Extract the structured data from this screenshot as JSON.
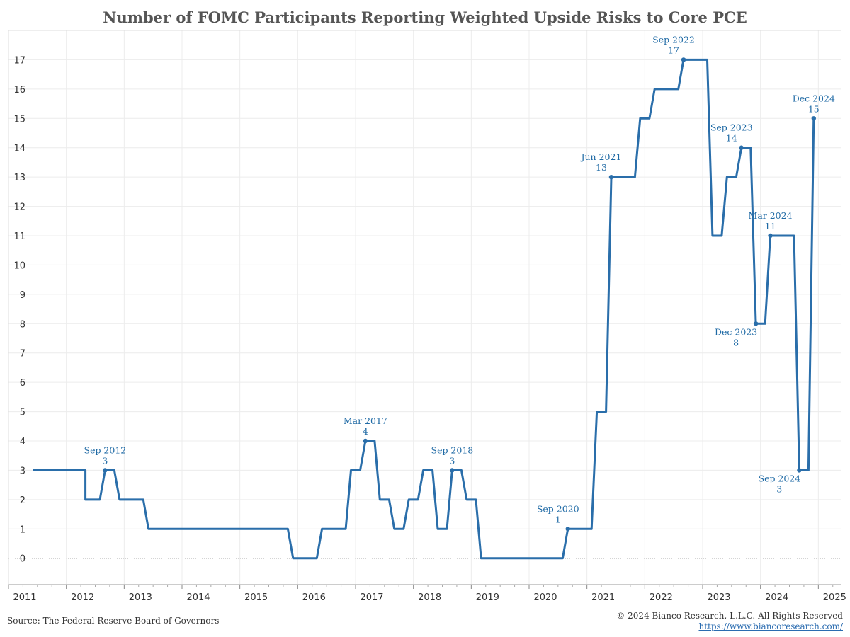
{
  "chart_data": {
    "type": "line",
    "title": "Number of FOMC Participants Reporting Weighted Upside Risks to Core PCE",
    "xlabel": "",
    "ylabel": "",
    "xlim": [
      2011.0,
      2025.4
    ],
    "ylim": [
      -0.9,
      18.0
    ],
    "x_ticks": [
      "2011",
      "2012",
      "2013",
      "2014",
      "2015",
      "2016",
      "2017",
      "2018",
      "2019",
      "2020",
      "2021",
      "2022",
      "2023",
      "2024",
      "2025"
    ],
    "y_ticks": [
      0,
      1,
      2,
      3,
      4,
      5,
      6,
      7,
      8,
      9,
      10,
      11,
      12,
      13,
      14,
      15,
      16,
      17
    ],
    "grid": true,
    "line_color": "#2a6eaa",
    "series": [
      {
        "name": "",
        "points": [
          [
            2011.42,
            3
          ],
          [
            2012.33,
            3
          ],
          [
            2012.33,
            2
          ],
          [
            2012.58,
            2
          ],
          [
            2012.67,
            3
          ],
          [
            2012.83,
            3
          ],
          [
            2012.92,
            2
          ],
          [
            2013.33,
            2
          ],
          [
            2013.42,
            1
          ],
          [
            2015.83,
            1
          ],
          [
            2015.92,
            0
          ],
          [
            2016.33,
            0
          ],
          [
            2016.42,
            1
          ],
          [
            2016.83,
            1
          ],
          [
            2016.92,
            3
          ],
          [
            2017.08,
            3
          ],
          [
            2017.17,
            4
          ],
          [
            2017.33,
            4
          ],
          [
            2017.42,
            2
          ],
          [
            2017.58,
            2
          ],
          [
            2017.67,
            1
          ],
          [
            2017.83,
            1
          ],
          [
            2017.92,
            2
          ],
          [
            2018.08,
            2
          ],
          [
            2018.17,
            3
          ],
          [
            2018.33,
            3
          ],
          [
            2018.42,
            1
          ],
          [
            2018.58,
            1
          ],
          [
            2018.67,
            3
          ],
          [
            2018.83,
            3
          ],
          [
            2018.92,
            2
          ],
          [
            2019.08,
            2
          ],
          [
            2019.17,
            0
          ],
          [
            2020.58,
            0
          ],
          [
            2020.67,
            1
          ],
          [
            2021.08,
            1
          ],
          [
            2021.17,
            5
          ],
          [
            2021.33,
            5
          ],
          [
            2021.42,
            13
          ],
          [
            2021.83,
            13
          ],
          [
            2021.92,
            15
          ],
          [
            2022.08,
            15
          ],
          [
            2022.17,
            16
          ],
          [
            2022.58,
            16
          ],
          [
            2022.67,
            17
          ],
          [
            2023.08,
            17
          ],
          [
            2023.17,
            11
          ],
          [
            2023.33,
            11
          ],
          [
            2023.42,
            13
          ],
          [
            2023.58,
            13
          ],
          [
            2023.67,
            14
          ],
          [
            2023.83,
            14
          ],
          [
            2023.92,
            8
          ],
          [
            2024.08,
            8
          ],
          [
            2024.17,
            11
          ],
          [
            2024.58,
            11
          ],
          [
            2024.67,
            3
          ],
          [
            2024.83,
            3
          ],
          [
            2024.92,
            15
          ]
        ]
      }
    ],
    "annotations": [
      {
        "x": 2012.67,
        "y": 3,
        "label": "Sep 2012",
        "value": "3",
        "pos": "above"
      },
      {
        "x": 2017.17,
        "y": 4,
        "label": "Mar 2017",
        "value": "4",
        "pos": "above"
      },
      {
        "x": 2018.67,
        "y": 3,
        "label": "Sep 2018",
        "value": "3",
        "pos": "above"
      },
      {
        "x": 2020.67,
        "y": 1,
        "label": "Sep 2020",
        "value": "1",
        "pos": "above-left"
      },
      {
        "x": 2021.42,
        "y": 13,
        "label": "Jun 2021",
        "value": "13",
        "pos": "above-left"
      },
      {
        "x": 2022.67,
        "y": 17,
        "label": "Sep 2022",
        "value": "17",
        "pos": "above-left"
      },
      {
        "x": 2023.67,
        "y": 14,
        "label": "Sep 2023",
        "value": "14",
        "pos": "above-left"
      },
      {
        "x": 2023.92,
        "y": 8,
        "label": "Dec 2023",
        "value": "8",
        "pos": "below-left"
      },
      {
        "x": 2024.17,
        "y": 11,
        "label": "Mar 2024",
        "value": "11",
        "pos": "above"
      },
      {
        "x": 2024.67,
        "y": 3,
        "label": "Sep 2024",
        "value": "3",
        "pos": "below-left"
      },
      {
        "x": 2024.92,
        "y": 15,
        "label": "Dec 2024",
        "value": "15",
        "pos": "above"
      }
    ]
  },
  "footer": {
    "source": "Source: The Federal Reserve Board of Governors",
    "copyright": "© 2024 Bianco Research, L.L.C. All Rights Reserved",
    "url": "https://www.biancoresearch.com/"
  }
}
